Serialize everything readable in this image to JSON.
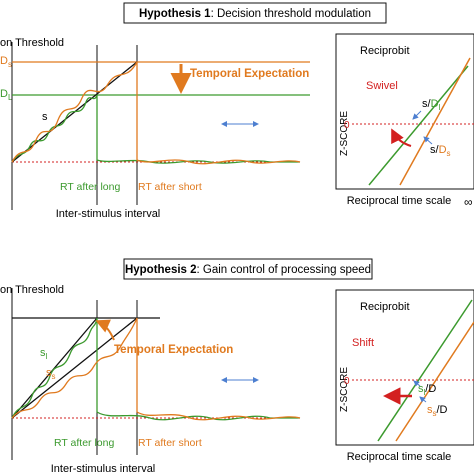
{
  "colors": {
    "orange": "#e07a1f",
    "green": "#3c9a2e",
    "red": "#d32020",
    "blue": "#4d7fd0",
    "black": "#111111"
  },
  "panel1": {
    "hypothesis_bold": "Hypothesis 1",
    "hypothesis_rest": ": Decision threshold modulation",
    "threshold_label": "on Threshold",
    "d_s": "D",
    "d_s_sub": "s",
    "d_l": "D",
    "d_l_sub": "L",
    "temporal_expectation": "Temporal Expectation",
    "s_label": "s",
    "rt_long": "RT after long",
    "rt_short": "RT after short",
    "x_label": "Inter-stimulus interval",
    "reciprobit": "Reciprobit",
    "mode": "Swivel",
    "y_label": "Z-SCORE",
    "zero": "0",
    "line1_s": "s/",
    "line1_d": "D",
    "line1_sub": "l",
    "line2_s": "s/",
    "line2_d": "D",
    "line2_sub": "s",
    "recip_x_label": "Reciprocal time scale",
    "infinity": "∞"
  },
  "panel2": {
    "hypothesis_bold": "Hypothesis 2",
    "hypothesis_rest": ": Gain control of processing speed",
    "threshold_label": "on Threshold",
    "temporal_expectation": "Temporal Expectation",
    "s_l": "s",
    "s_l_sub": "l",
    "s_s": "s",
    "s_s_sub": "s",
    "rt_long": "RT after long",
    "rt_short": "RT after short",
    "x_label": "Inter-stimulus interval",
    "reciprobit": "Reciprobit",
    "mode": "Shift",
    "y_label": "Z-SCORE",
    "zero": "0",
    "line1_s": "s",
    "line1_sub": "l",
    "line1_d": "/D",
    "line2_s": "s",
    "line2_sub": "s",
    "line2_d": "/D",
    "recip_x_label": "Reciprocal time scale"
  }
}
